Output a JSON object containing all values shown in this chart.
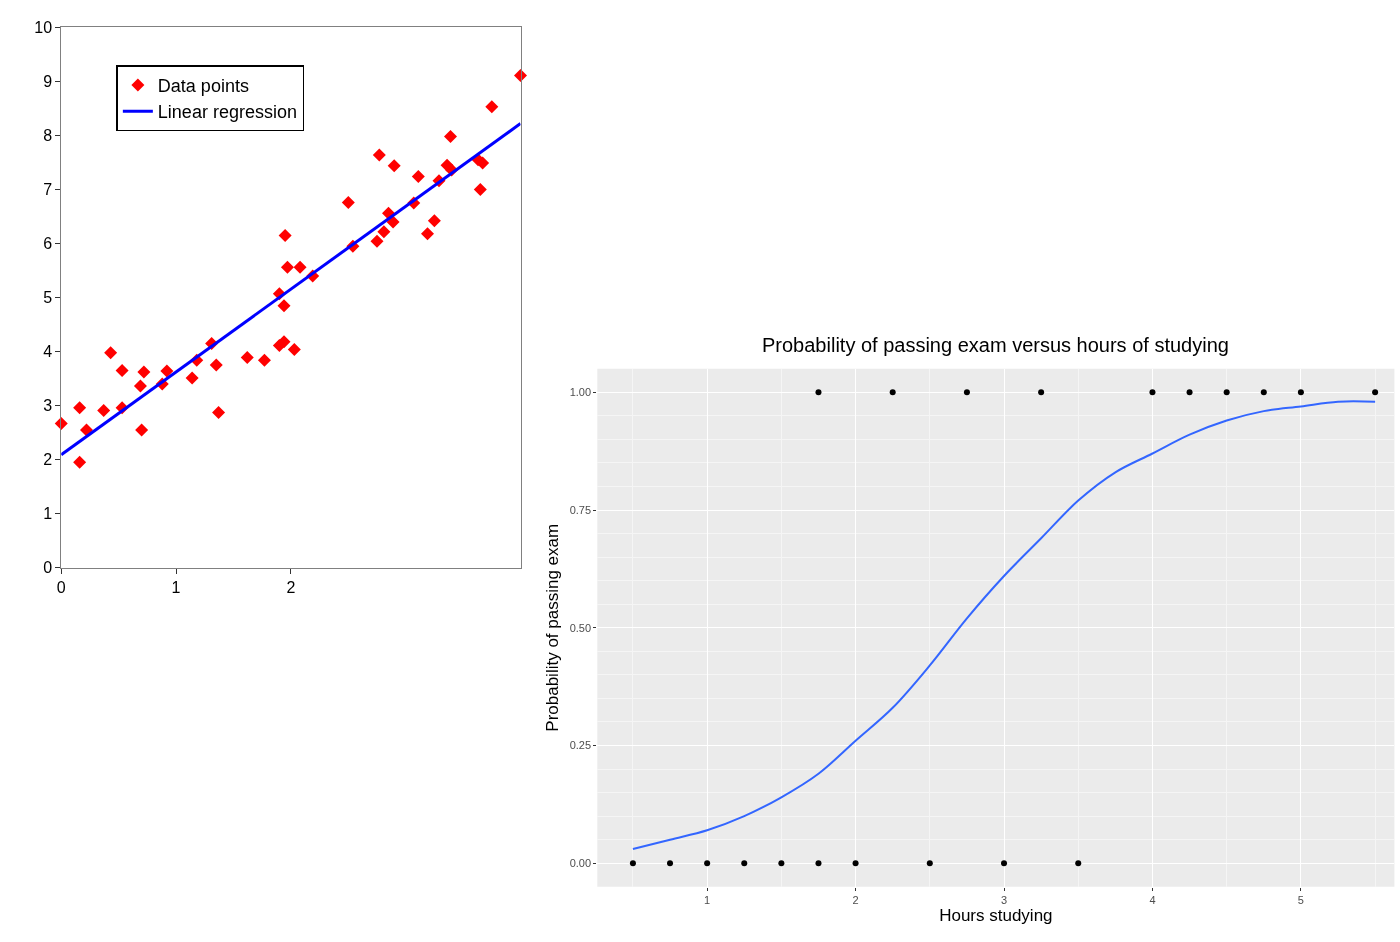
{
  "chart_data": [
    {
      "type": "scatter",
      "xlim": [
        0,
        4
      ],
      "xticks": [
        0,
        1,
        2
      ],
      "ylim": [
        0,
        10
      ],
      "yticks": [
        0,
        1,
        2,
        3,
        4,
        5,
        6,
        7,
        8,
        9,
        10
      ],
      "grid": false,
      "legend": "top left",
      "series": [
        {
          "name": "Data points",
          "marker": "diamond",
          "color": "#ff0000",
          "x": [
            0,
            0.16,
            0.16,
            0.22,
            0.37,
            0.43,
            0.53,
            0.53,
            0.69,
            0.7,
            0.72,
            0.88,
            0.92,
            1.14,
            1.18,
            1.31,
            1.35,
            1.37,
            1.62,
            1.77,
            1.9,
            1.9,
            1.94,
            1.95,
            1.94,
            1.97,
            2.03,
            2.08,
            2.19,
            2.5,
            2.54,
            2.75,
            2.77,
            2.81,
            2.85,
            2.89,
            2.9,
            3.07,
            3.11,
            3.19,
            3.25,
            3.29,
            3.36,
            3.39,
            3.4,
            3.63,
            3.67,
            3.65,
            3.75,
            4.0
          ],
          "values": [
            2.67,
            2.96,
            1.95,
            2.55,
            2.91,
            3.98,
            2.96,
            3.65,
            3.36,
            2.55,
            3.62,
            3.4,
            3.64,
            3.51,
            3.84,
            4.15,
            3.75,
            2.87,
            3.89,
            3.84,
            5.07,
            4.11,
            4.85,
            6.15,
            4.18,
            5.56,
            4.04,
            5.56,
            5.4,
            6.76,
            5.95,
            6.04,
            7.64,
            6.22,
            6.56,
            6.4,
            7.44,
            6.75,
            7.24,
            6.18,
            6.42,
            7.16,
            7.45,
            7.98,
            7.36,
            7.55,
            7.49,
            7.0,
            8.53,
            9.11
          ]
        },
        {
          "name": "Linear regression",
          "type": "line",
          "marker": "none",
          "line_style": "solid",
          "color": "#0000ff",
          "x": [
            0,
            4.0
          ],
          "values": [
            2.09,
            8.22
          ]
        }
      ]
    },
    {
      "type": "scatter",
      "title": "Probability of passing exam versus hours of studying",
      "xlabel": "Hours studying",
      "ylabel": "Probability of passing exam",
      "xlim": [
        0.26,
        5.63
      ],
      "xticks": [
        1,
        2,
        3,
        4,
        5
      ],
      "ylim": [
        -0.05,
        1.05
      ],
      "yticks": [
        {
          "value": 0,
          "label": "0.00"
        },
        {
          "value": 0.25,
          "label": "0.25"
        },
        {
          "value": 0.5,
          "label": "0.50"
        },
        {
          "value": 0.75,
          "label": "0.75"
        },
        {
          "value": 1,
          "label": "1.00"
        }
      ],
      "grid": true,
      "legend": false,
      "series": [
        {
          "marker": "circle",
          "color": "#000000",
          "x": [
            0.5,
            0.75,
            1.0,
            1.25,
            1.5,
            1.75,
            1.75,
            2.0,
            2.25,
            2.5,
            2.75,
            3.0,
            3.25,
            3.5,
            4.0,
            4.25,
            4.5,
            4.75,
            5.0,
            5.5
          ],
          "values": [
            0,
            0,
            0,
            0,
            0,
            0,
            1,
            0,
            1,
            0,
            1,
            0,
            1,
            0,
            1,
            1,
            1,
            1,
            1,
            1
          ]
        },
        {
          "type": "line",
          "marker": "none",
          "line_style": "solid",
          "color": "#3366ff",
          "x": [
            0.5,
            0.75,
            1.0,
            1.25,
            1.5,
            1.75,
            2.0,
            2.25,
            2.5,
            2.75,
            3.0,
            3.25,
            3.5,
            3.75,
            4.0,
            4.25,
            4.5,
            4.75,
            5.0,
            5.25,
            5.5
          ],
          "values": [
            0.03,
            0.05,
            0.07,
            0.1,
            0.14,
            0.19,
            0.26,
            0.33,
            0.42,
            0.52,
            0.61,
            0.69,
            0.77,
            0.83,
            0.87,
            0.91,
            0.94,
            0.96,
            0.97,
            0.98,
            0.98
          ]
        }
      ]
    }
  ]
}
